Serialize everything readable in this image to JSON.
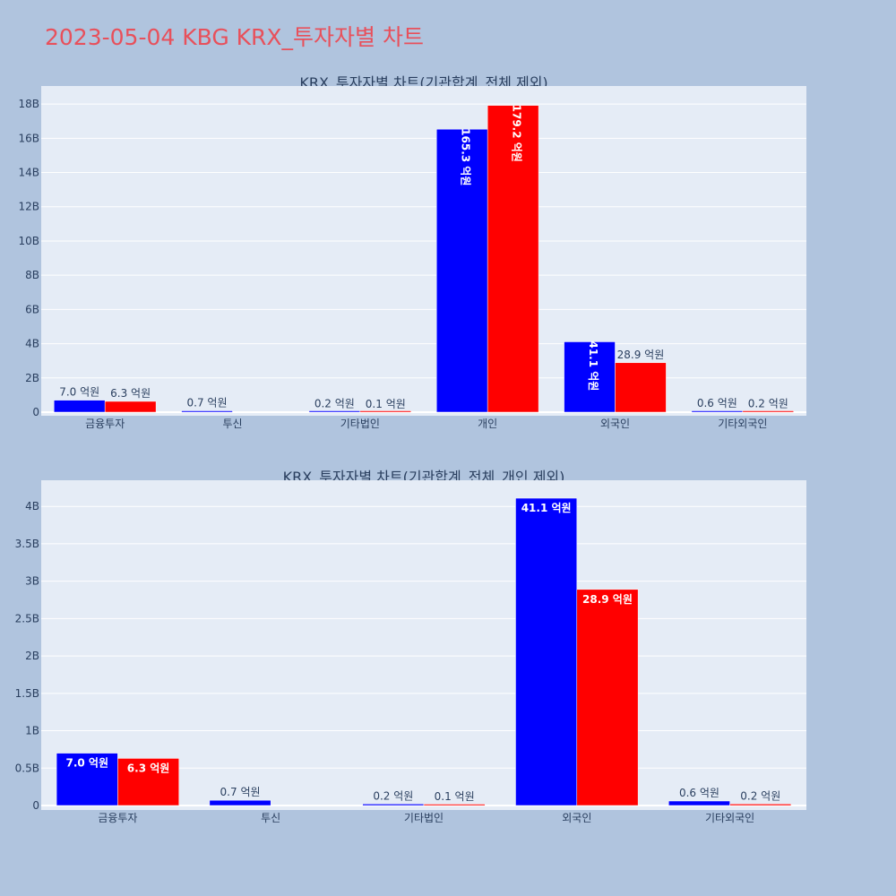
{
  "title": "2023-05-04 KBG KRX_투자자별 차트",
  "colors": {
    "buy": "#0000ff",
    "sell": "#ff0000",
    "plot_bg": "#e5ecf6",
    "page_bg": "#b0c4de",
    "title": "#e8505b"
  },
  "chart_data": [
    {
      "type": "bar",
      "title": "KRX_투자자별 차트(기관합계_전체 제외)",
      "categories": [
        "금융투자",
        "투신",
        "기타법인",
        "개인",
        "외국인",
        "기타외국인"
      ],
      "series": [
        {
          "color": "#0000ff",
          "values": [
            700000000,
            70000000,
            20000000,
            16530000000,
            4110000000,
            60000000
          ],
          "labels": [
            "7.0 억원",
            "0.7 억원",
            "0.2 억원",
            "165.3 억원",
            "41.1 억원",
            "0.6 억원"
          ]
        },
        {
          "color": "#ff0000",
          "values": [
            630000000,
            0,
            10000000,
            17920000000,
            2890000000,
            20000000
          ],
          "labels": [
            "6.3 억원",
            "",
            "0.1 억원",
            "179.2 억원",
            "28.9 억원",
            "0.2 억원"
          ]
        }
      ],
      "ylim": [
        0,
        19000000000
      ],
      "yticks": [
        0,
        2000000000,
        4000000000,
        6000000000,
        8000000000,
        10000000000,
        12000000000,
        14000000000,
        16000000000,
        18000000000
      ],
      "ytick_labels": [
        "0",
        "2B",
        "4B",
        "6B",
        "8B",
        "10B",
        "12B",
        "14B",
        "16B",
        "18B"
      ],
      "grid": true
    },
    {
      "type": "bar",
      "title": "KRX_투자자별 차트(기관합계_전체_개인 제외)",
      "categories": [
        "금융투자",
        "투신",
        "기타법인",
        "외국인",
        "기타외국인"
      ],
      "series": [
        {
          "color": "#0000ff",
          "values": [
            700000000,
            70000000,
            20000000,
            4110000000,
            60000000
          ],
          "labels": [
            "7.0 억원",
            "0.7 억원",
            "0.2 억원",
            "41.1 억원",
            "0.6 억원"
          ]
        },
        {
          "color": "#ff0000",
          "values": [
            630000000,
            0,
            10000000,
            2890000000,
            20000000
          ],
          "labels": [
            "6.3 억원",
            "",
            "0.1 억원",
            "28.9 억원",
            "0.2 억원"
          ]
        }
      ],
      "ylim": [
        0,
        4350000000
      ],
      "yticks": [
        0,
        500000000,
        1000000000,
        1500000000,
        2000000000,
        2500000000,
        3000000000,
        3500000000,
        4000000000
      ],
      "ytick_labels": [
        "0",
        "0.5B",
        "1B",
        "1.5B",
        "2B",
        "2.5B",
        "3B",
        "3.5B",
        "4B"
      ],
      "grid": true
    }
  ]
}
